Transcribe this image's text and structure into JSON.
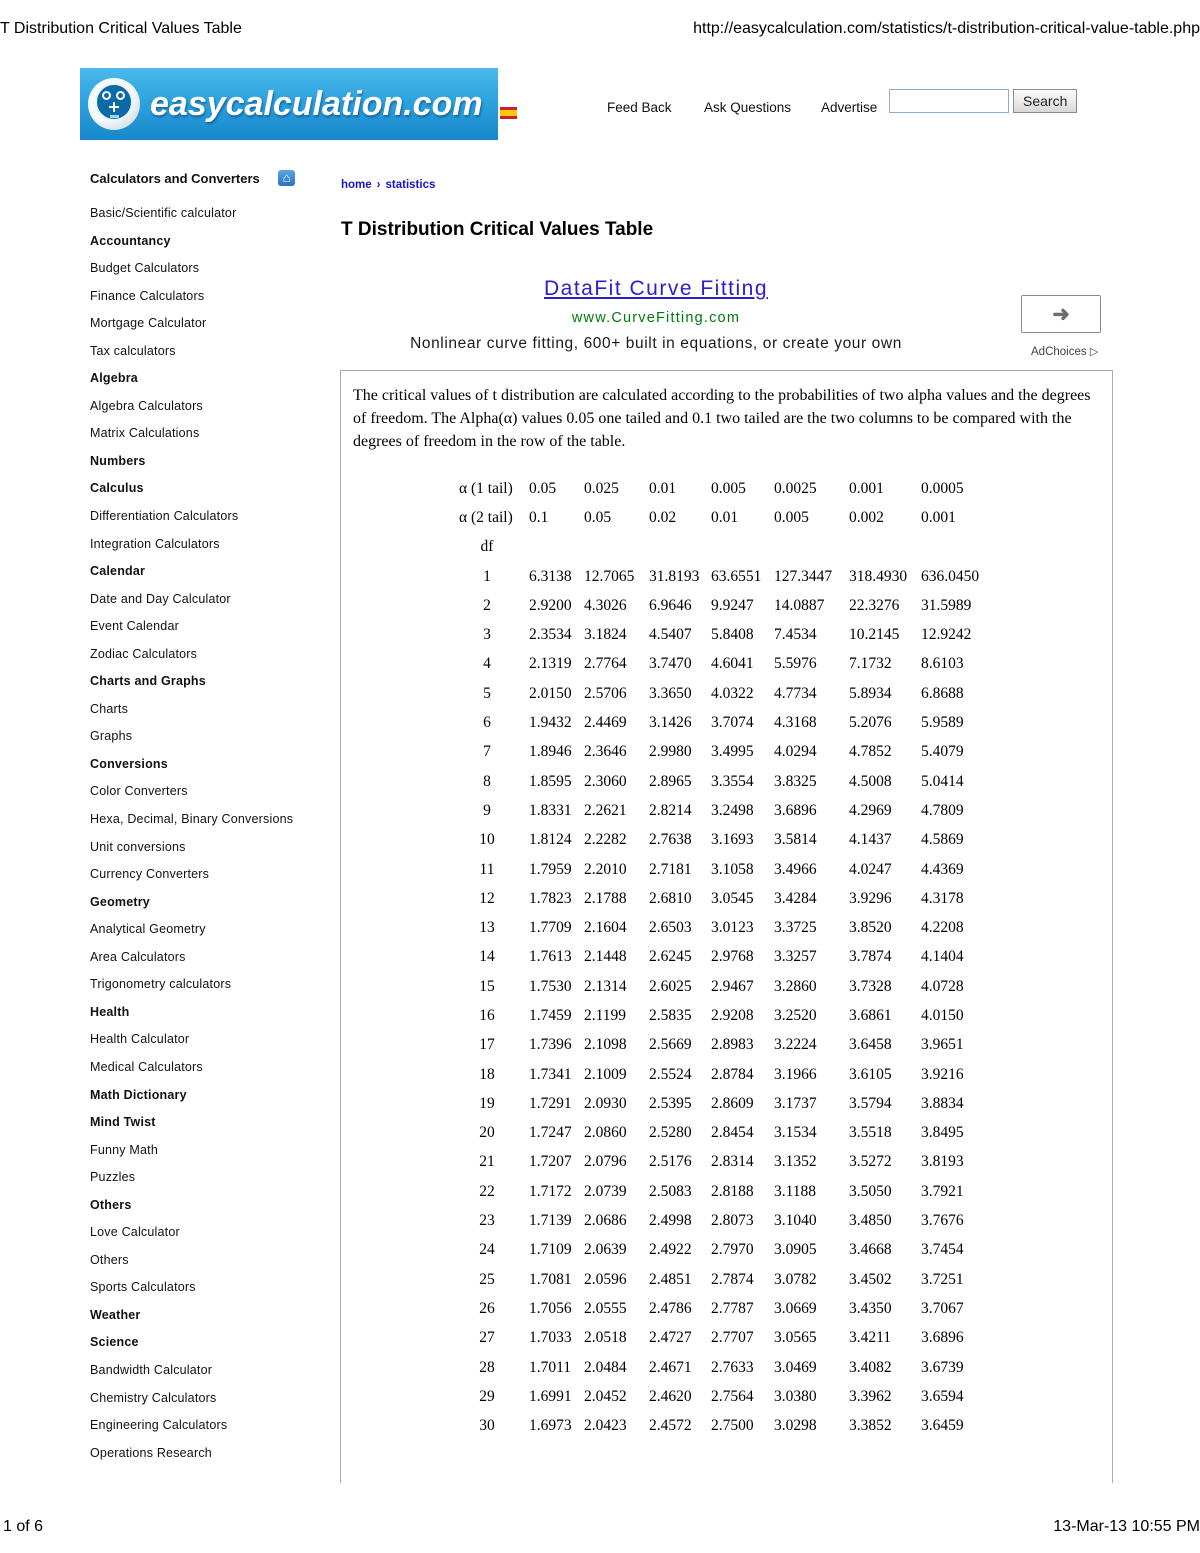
{
  "print_header": {
    "title": "T Distribution Critical Values Table",
    "url": "http://easycalculation.com/statistics/t-distribution-critical-value-table.php"
  },
  "print_footer": {
    "page": "1 of 6",
    "timestamp": "13-Mar-13 10:55 PM"
  },
  "header": {
    "logo_text": "easycalculation.com",
    "logo_icon": "calculator-face-icon",
    "flag_icon": "spanish-flag-icon",
    "nav": [
      {
        "label": "Feed Back"
      },
      {
        "label": "Ask Questions"
      },
      {
        "label": "Advertise"
      }
    ],
    "search": {
      "value": "",
      "button_label": "Search"
    }
  },
  "sidebar": {
    "title": "Calculators and Converters",
    "home_icon": "⌂",
    "items": [
      {
        "label": "Basic/Scientific calculator",
        "bold": false
      },
      {
        "label": "Accountancy",
        "bold": true
      },
      {
        "label": "Budget Calculators",
        "bold": false
      },
      {
        "label": "Finance Calculators",
        "bold": false
      },
      {
        "label": "Mortgage Calculator",
        "bold": false
      },
      {
        "label": "Tax calculators",
        "bold": false
      },
      {
        "label": "Algebra",
        "bold": true
      },
      {
        "label": "Algebra Calculators",
        "bold": false
      },
      {
        "label": "Matrix Calculations",
        "bold": false
      },
      {
        "label": "Numbers",
        "bold": true
      },
      {
        "label": "Calculus",
        "bold": true
      },
      {
        "label": "Differentiation Calculators",
        "bold": false
      },
      {
        "label": "Integration Calculators",
        "bold": false
      },
      {
        "label": "Calendar",
        "bold": true
      },
      {
        "label": "Date and Day Calculator",
        "bold": false
      },
      {
        "label": "Event Calendar",
        "bold": false
      },
      {
        "label": "Zodiac Calculators",
        "bold": false
      },
      {
        "label": "Charts and Graphs",
        "bold": true
      },
      {
        "label": "Charts",
        "bold": false
      },
      {
        "label": "Graphs",
        "bold": false
      },
      {
        "label": "Conversions",
        "bold": true
      },
      {
        "label": "Color Converters",
        "bold": false
      },
      {
        "label": "Hexa, Decimal, Binary Conversions",
        "bold": false
      },
      {
        "label": "Unit conversions",
        "bold": false
      },
      {
        "label": "Currency Converters",
        "bold": false
      },
      {
        "label": "Geometry",
        "bold": true
      },
      {
        "label": "Analytical Geometry",
        "bold": false
      },
      {
        "label": "Area Calculators",
        "bold": false
      },
      {
        "label": "Trigonometry calculators",
        "bold": false
      },
      {
        "label": "Health",
        "bold": true
      },
      {
        "label": "Health Calculator",
        "bold": false
      },
      {
        "label": "Medical Calculators",
        "bold": false
      },
      {
        "label": "Math Dictionary",
        "bold": true
      },
      {
        "label": "Mind Twist",
        "bold": true
      },
      {
        "label": "Funny Math",
        "bold": false
      },
      {
        "label": "Puzzles",
        "bold": false
      },
      {
        "label": "Others",
        "bold": true
      },
      {
        "label": "Love Calculator",
        "bold": false
      },
      {
        "label": "Others",
        "bold": false
      },
      {
        "label": "Sports Calculators",
        "bold": false
      },
      {
        "label": "Weather",
        "bold": true
      },
      {
        "label": "Science",
        "bold": true
      },
      {
        "label": "Bandwidth Calculator",
        "bold": false
      },
      {
        "label": "Chemistry Calculators",
        "bold": false
      },
      {
        "label": "Engineering Calculators",
        "bold": false
      },
      {
        "label": "Operations Research",
        "bold": false
      }
    ]
  },
  "breadcrumb": {
    "items": [
      "home",
      "statistics"
    ],
    "separator": "›"
  },
  "main": {
    "page_title": "T Distribution Critical Values Table",
    "ad": {
      "headline": "DataFit Curve Fitting",
      "display_url": "www.CurveFitting.com",
      "body": "Nonlinear curve fitting, 600+ built in equations, or create your own",
      "adchoices_label": "AdChoices",
      "adchoices_icon": "▷",
      "arrow_icon": "➜"
    },
    "description": "The critical values of t distribution are calculated according to the probabilities of two alpha values and the degrees of freedom. The Alpha(α) values 0.05 one tailed and 0.1 two tailed are the two columns to be compared with the degrees of freedom in the row of the table.",
    "table": {
      "type": "table",
      "alpha1_label": "α (1 tail)",
      "alpha1_values": [
        "0.05",
        "0.025",
        "0.01",
        "0.005",
        "0.0025",
        "0.001",
        "0.0005"
      ],
      "alpha2_label": "α (2 tail)",
      "alpha2_values": [
        "0.1",
        "0.05",
        "0.02",
        "0.01",
        "0.005",
        "0.002",
        "0.001"
      ],
      "df_label": "df",
      "rows": [
        {
          "df": "1",
          "values": [
            "6.3138",
            "12.7065",
            "31.8193",
            "63.6551",
            "127.3447",
            "318.4930",
            "636.0450"
          ]
        },
        {
          "df": "2",
          "values": [
            "2.9200",
            "4.3026",
            "6.9646",
            "9.9247",
            "14.0887",
            "22.3276",
            "31.5989"
          ]
        },
        {
          "df": "3",
          "values": [
            "2.3534",
            "3.1824",
            "4.5407",
            "5.8408",
            "7.4534",
            "10.2145",
            "12.9242"
          ]
        },
        {
          "df": "4",
          "values": [
            "2.1319",
            "2.7764",
            "3.7470",
            "4.6041",
            "5.5976",
            "7.1732",
            "8.6103"
          ]
        },
        {
          "df": "5",
          "values": [
            "2.0150",
            "2.5706",
            "3.3650",
            "4.0322",
            "4.7734",
            "5.8934",
            "6.8688"
          ]
        },
        {
          "df": "6",
          "values": [
            "1.9432",
            "2.4469",
            "3.1426",
            "3.7074",
            "4.3168",
            "5.2076",
            "5.9589"
          ]
        },
        {
          "df": "7",
          "values": [
            "1.8946",
            "2.3646",
            "2.9980",
            "3.4995",
            "4.0294",
            "4.7852",
            "5.4079"
          ]
        },
        {
          "df": "8",
          "values": [
            "1.8595",
            "2.3060",
            "2.8965",
            "3.3554",
            "3.8325",
            "4.5008",
            "5.0414"
          ]
        },
        {
          "df": "9",
          "values": [
            "1.8331",
            "2.2621",
            "2.8214",
            "3.2498",
            "3.6896",
            "4.2969",
            "4.7809"
          ]
        },
        {
          "df": "10",
          "values": [
            "1.8124",
            "2.2282",
            "2.7638",
            "3.1693",
            "3.5814",
            "4.1437",
            "4.5869"
          ]
        },
        {
          "df": "11",
          "values": [
            "1.7959",
            "2.2010",
            "2.7181",
            "3.1058",
            "3.4966",
            "4.0247",
            "4.4369"
          ]
        },
        {
          "df": "12",
          "values": [
            "1.7823",
            "2.1788",
            "2.6810",
            "3.0545",
            "3.4284",
            "3.9296",
            "4.3178"
          ]
        },
        {
          "df": "13",
          "values": [
            "1.7709",
            "2.1604",
            "2.6503",
            "3.0123",
            "3.3725",
            "3.8520",
            "4.2208"
          ]
        },
        {
          "df": "14",
          "values": [
            "1.7613",
            "2.1448",
            "2.6245",
            "2.9768",
            "3.3257",
            "3.7874",
            "4.1404"
          ]
        },
        {
          "df": "15",
          "values": [
            "1.7530",
            "2.1314",
            "2.6025",
            "2.9467",
            "3.2860",
            "3.7328",
            "4.0728"
          ]
        },
        {
          "df": "16",
          "values": [
            "1.7459",
            "2.1199",
            "2.5835",
            "2.9208",
            "3.2520",
            "3.6861",
            "4.0150"
          ]
        },
        {
          "df": "17",
          "values": [
            "1.7396",
            "2.1098",
            "2.5669",
            "2.8983",
            "3.2224",
            "3.6458",
            "3.9651"
          ]
        },
        {
          "df": "18",
          "values": [
            "1.7341",
            "2.1009",
            "2.5524",
            "2.8784",
            "3.1966",
            "3.6105",
            "3.9216"
          ]
        },
        {
          "df": "19",
          "values": [
            "1.7291",
            "2.0930",
            "2.5395",
            "2.8609",
            "3.1737",
            "3.5794",
            "3.8834"
          ]
        },
        {
          "df": "20",
          "values": [
            "1.7247",
            "2.0860",
            "2.5280",
            "2.8454",
            "3.1534",
            "3.5518",
            "3.8495"
          ]
        },
        {
          "df": "21",
          "values": [
            "1.7207",
            "2.0796",
            "2.5176",
            "2.8314",
            "3.1352",
            "3.5272",
            "3.8193"
          ]
        },
        {
          "df": "22",
          "values": [
            "1.7172",
            "2.0739",
            "2.5083",
            "2.8188",
            "3.1188",
            "3.5050",
            "3.7921"
          ]
        },
        {
          "df": "23",
          "values": [
            "1.7139",
            "2.0686",
            "2.4998",
            "2.8073",
            "3.1040",
            "3.4850",
            "3.7676"
          ]
        },
        {
          "df": "24",
          "values": [
            "1.7109",
            "2.0639",
            "2.4922",
            "2.7970",
            "3.0905",
            "3.4668",
            "3.7454"
          ]
        },
        {
          "df": "25",
          "values": [
            "1.7081",
            "2.0596",
            "2.4851",
            "2.7874",
            "3.0782",
            "3.4502",
            "3.7251"
          ]
        },
        {
          "df": "26",
          "values": [
            "1.7056",
            "2.0555",
            "2.4786",
            "2.7787",
            "3.0669",
            "3.4350",
            "3.7067"
          ]
        },
        {
          "df": "27",
          "values": [
            "1.7033",
            "2.0518",
            "2.4727",
            "2.7707",
            "3.0565",
            "3.4211",
            "3.6896"
          ]
        },
        {
          "df": "28",
          "values": [
            "1.7011",
            "2.0484",
            "2.4671",
            "2.7633",
            "3.0469",
            "3.4082",
            "3.6739"
          ]
        },
        {
          "df": "29",
          "values": [
            "1.6991",
            "2.0452",
            "2.4620",
            "2.7564",
            "3.0380",
            "3.3962",
            "3.6594"
          ]
        },
        {
          "df": "30",
          "values": [
            "1.6973",
            "2.0423",
            "2.4572",
            "2.7500",
            "3.0298",
            "3.3852",
            "3.6459"
          ]
        }
      ]
    }
  },
  "colors": {
    "banner_blue_top": "#4cb9ec",
    "banner_blue_bottom": "#1787cb",
    "link_blue": "#1515c8",
    "ad_link_blue": "#2b20cc",
    "ad_url_green": "#007a0c",
    "border_gray": "#ababab"
  }
}
